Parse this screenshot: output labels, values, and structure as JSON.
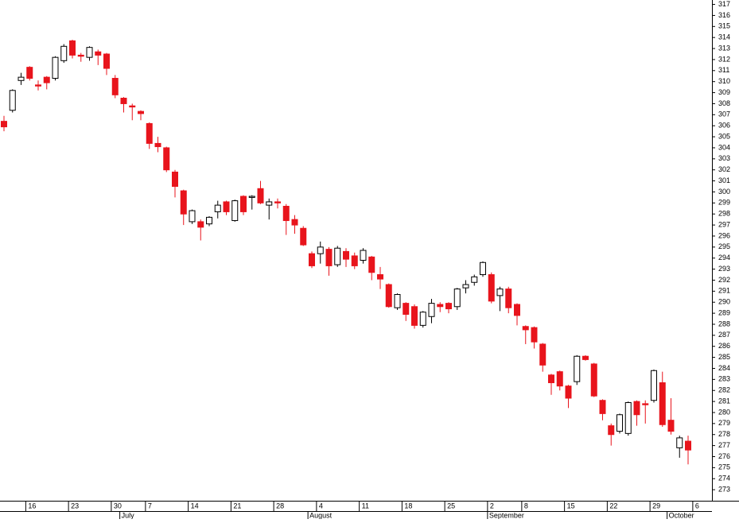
{
  "chart_data": {
    "type": "candlestick",
    "categories": [
      null,
      null,
      null,
      "16",
      null,
      null,
      null,
      null,
      "23",
      null,
      null,
      null,
      null,
      "30",
      null,
      null,
      null,
      "7",
      null,
      null,
      null,
      null,
      "14",
      null,
      null,
      null,
      null,
      "21",
      null,
      null,
      null,
      null,
      "28",
      null,
      null,
      null,
      null,
      "4",
      null,
      null,
      null,
      null,
      "11",
      null,
      null,
      null,
      null,
      "18",
      null,
      null,
      null,
      null,
      "25",
      null,
      null,
      null,
      null,
      "2",
      null,
      null,
      null,
      "8",
      null,
      null,
      null,
      null,
      "15",
      null,
      null,
      null,
      null,
      "22",
      null,
      null,
      null,
      null,
      "29",
      null,
      null,
      null,
      null
    ],
    "month_categories": [
      null,
      null,
      null,
      null,
      null,
      null,
      null,
      null,
      null,
      null,
      null,
      null,
      null,
      null,
      "July",
      null,
      null,
      null,
      null,
      null,
      null,
      null,
      null,
      null,
      null,
      null,
      null,
      null,
      null,
      null,
      null,
      null,
      null,
      null,
      null,
      null,
      "August",
      null,
      null,
      null,
      null,
      null,
      null,
      null,
      null,
      null,
      null,
      null,
      null,
      null,
      null,
      null,
      null,
      null,
      null,
      null,
      null,
      "September",
      null,
      null,
      null,
      null,
      null,
      null,
      null,
      null,
      null,
      null,
      null,
      null,
      null,
      null,
      null,
      null,
      null,
      null,
      null,
      null,
      "October",
      null,
      null
    ],
    "extra_tick_label": "6",
    "series": [
      {
        "open": [
          306.4,
          307.4,
          310.1,
          311.3,
          309.7,
          310.4,
          310.3,
          311.9,
          313.7,
          312.4,
          312.2,
          312.7,
          312.5,
          310.3,
          308.5,
          307.8,
          307.3,
          306.2,
          304.4,
          304.0,
          301.8,
          300.1,
          297.3,
          297.3,
          297.1,
          298.2,
          299.1,
          297.4,
          299.6,
          299.5,
          300.3,
          298.8,
          299.1,
          298.7,
          297.5,
          296.7,
          294.4,
          294.4,
          294.8,
          293.4,
          294.6,
          294.2,
          293.8,
          294.1,
          292.5,
          291.6,
          289.5,
          289.9,
          289.6,
          287.9,
          288.7,
          289.8,
          289.9,
          289.6,
          291.3,
          291.8,
          292.5,
          292.5,
          290.6,
          291.2,
          289.8,
          287.8,
          287.7,
          286.2,
          283.4,
          283.7,
          282.4,
          282.8,
          285.1,
          284.4,
          281.1,
          278.8,
          278.3,
          278.1,
          281.0,
          280.8,
          281.1,
          282.7,
          279.3,
          276.8,
          277.4
        ],
        "high": [
          306.9,
          309.3,
          310.8,
          311.4,
          310.1,
          310.5,
          312.3,
          313.4,
          313.8,
          312.6,
          313.2,
          312.9,
          312.6,
          310.6,
          308.6,
          308.0,
          307.4,
          306.3,
          305.0,
          304.1,
          302.0,
          300.2,
          298.4,
          297.5,
          297.8,
          299.2,
          299.2,
          299.3,
          299.7,
          299.7,
          301.0,
          299.4,
          299.4,
          298.9,
          297.9,
          296.9,
          294.6,
          295.5,
          295.0,
          295.1,
          294.9,
          294.5,
          294.9,
          294.2,
          293.2,
          291.7,
          290.8,
          290.0,
          289.8,
          289.2,
          290.3,
          290.0,
          290.0,
          291.3,
          292.0,
          292.5,
          293.7,
          292.7,
          291.4,
          291.4,
          289.9,
          287.9,
          287.8,
          286.3,
          283.5,
          283.8,
          282.5,
          285.2,
          285.2,
          284.5,
          281.2,
          279.0,
          279.9,
          281.0,
          281.1,
          281.1,
          283.9,
          283.7,
          281.3,
          277.9,
          277.9
        ],
        "low": [
          305.5,
          307.2,
          309.7,
          310.1,
          309.2,
          309.3,
          310.1,
          311.7,
          312.1,
          311.8,
          311.9,
          311.5,
          310.6,
          308.5,
          307.2,
          306.5,
          306.5,
          303.9,
          303.6,
          301.8,
          299.5,
          297.0,
          297.1,
          295.6,
          296.9,
          297.6,
          297.9,
          297.3,
          297.9,
          298.4,
          298.9,
          297.5,
          298.5,
          296.1,
          296.2,
          295.1,
          293.1,
          293.5,
          292.4,
          293.2,
          293.2,
          293.0,
          293.5,
          292.0,
          291.2,
          289.5,
          289.3,
          288.3,
          287.6,
          287.7,
          288.1,
          289.1,
          289.0,
          289.3,
          290.8,
          291.5,
          292.3,
          289.9,
          289.2,
          289.0,
          287.9,
          286.2,
          285.8,
          283.7,
          281.6,
          282.0,
          280.4,
          282.5,
          284.7,
          281.4,
          279.3,
          277.0,
          278.1,
          277.9,
          278.8,
          279.0,
          280.9,
          278.7,
          278.0,
          275.9,
          275.3
        ],
        "close": [
          305.9,
          309.2,
          310.4,
          310.3,
          309.6,
          309.9,
          312.2,
          313.2,
          312.4,
          312.3,
          313.1,
          312.4,
          311.2,
          308.8,
          308.0,
          307.7,
          307.1,
          304.4,
          304.1,
          302.0,
          300.5,
          298.0,
          298.3,
          296.8,
          297.7,
          298.8,
          298.2,
          299.2,
          298.2,
          299.6,
          299.0,
          299.1,
          299.0,
          297.4,
          297.0,
          295.2,
          293.3,
          295.0,
          293.3,
          294.9,
          293.9,
          293.3,
          294.7,
          292.7,
          292.1,
          289.6,
          290.7,
          288.9,
          287.9,
          289.1,
          289.9,
          289.6,
          289.4,
          291.2,
          291.6,
          292.3,
          293.6,
          290.1,
          291.2,
          289.5,
          288.8,
          287.5,
          286.4,
          284.3,
          282.7,
          282.4,
          281.3,
          285.1,
          284.8,
          281.5,
          279.9,
          278.0,
          279.8,
          280.9,
          279.8,
          280.7,
          283.8,
          278.9,
          278.3,
          277.7,
          276.6
        ]
      }
    ],
    "up_color": "#ffffff",
    "down_color": "#e8141c",
    "outline_color": "#000000",
    "ylim": [
      272,
      317.4
    ],
    "yticks": [
      273,
      274,
      275,
      276,
      277,
      278,
      279,
      280,
      281,
      282,
      283,
      284,
      285,
      286,
      287,
      288,
      289,
      290,
      291,
      292,
      293,
      294,
      295,
      296,
      297,
      298,
      299,
      300,
      301,
      302,
      303,
      304,
      305,
      306,
      307,
      308,
      309,
      310,
      311,
      312,
      313,
      314,
      315,
      316,
      317
    ]
  }
}
